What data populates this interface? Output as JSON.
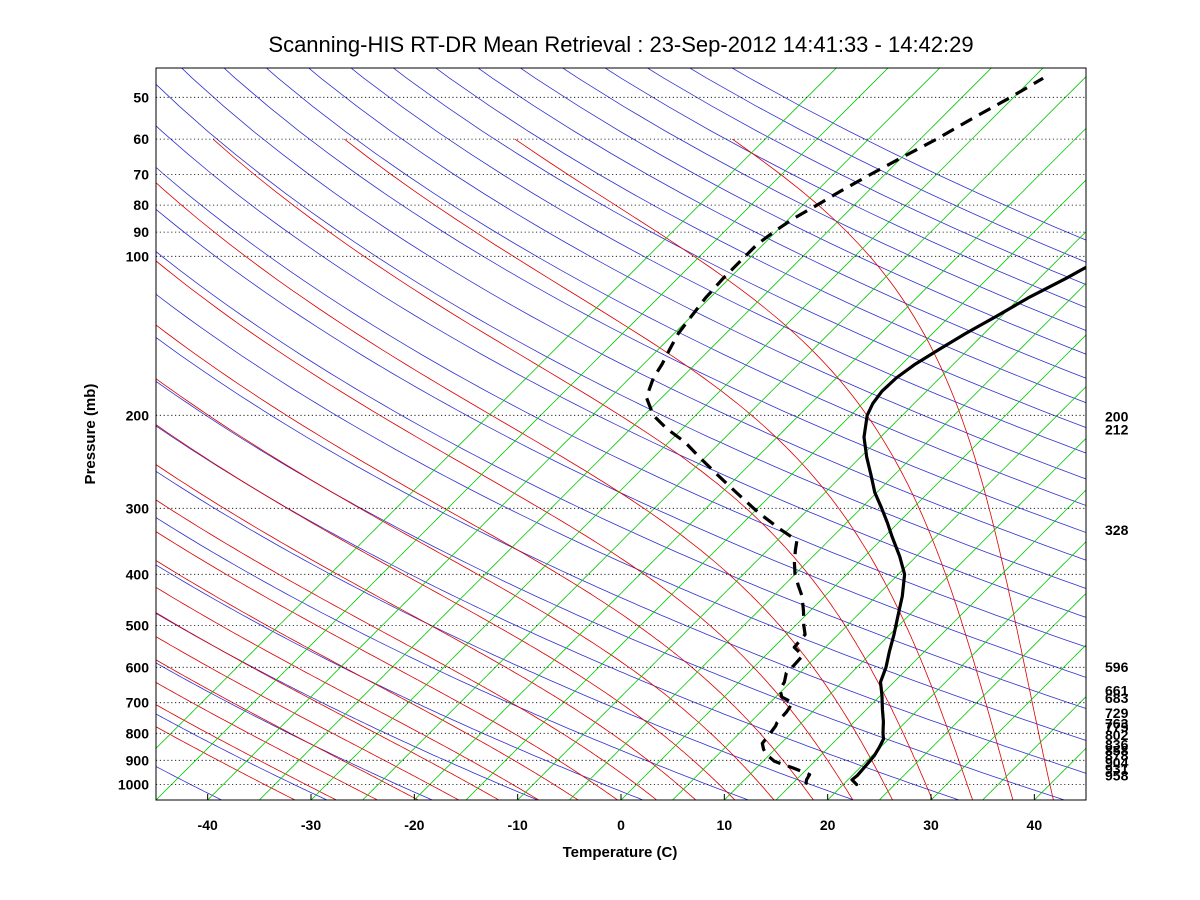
{
  "chart_data": {
    "type": "line",
    "subtype": "skew-t log-p sounding",
    "title": "Scanning-HIS RT-DR Mean Retrieval : 23-Sep-2012 14:41:33 - 14:42:29",
    "xlabel": "Temperature (C)",
    "ylabel": "Pressure (mb)",
    "xlim": [
      -45,
      45
    ],
    "ylim": [
      1070,
      44
    ],
    "x_ticks": [
      -40,
      -30,
      -20,
      -10,
      0,
      10,
      20,
      30,
      40
    ],
    "pressure_ticks": [
      50,
      60,
      70,
      80,
      90,
      100,
      200,
      300,
      400,
      500,
      600,
      700,
      800,
      900,
      1000
    ],
    "right_labels": [
      200,
      212,
      328,
      596,
      661,
      683,
      729,
      763,
      775,
      802,
      836,
      858,
      878,
      904,
      931,
      958
    ],
    "grid": true,
    "background_lines": {
      "dry_adiabats_color": "#3030d0",
      "moist_adiabats_color": "#dd0000",
      "mixing_ratio_color": "#00c800",
      "isobar_color": "#000000"
    },
    "series": [
      {
        "name": "Temperature",
        "style": "solid",
        "color": "#000000",
        "points": [
          [
            1000,
            21.3
          ],
          [
            980,
            20.4
          ],
          [
            960,
            20.5
          ],
          [
            930,
            20.4
          ],
          [
            900,
            20.3
          ],
          [
            880,
            20.2
          ],
          [
            850,
            19.9
          ],
          [
            820,
            19.5
          ],
          [
            800,
            18.9
          ],
          [
            760,
            17.8
          ],
          [
            720,
            16.5
          ],
          [
            680,
            15.2
          ],
          [
            640,
            13.7
          ],
          [
            600,
            12.8
          ],
          [
            560,
            11.6
          ],
          [
            520,
            10.4
          ],
          [
            480,
            9.0
          ],
          [
            440,
            7.5
          ],
          [
            400,
            5.6
          ],
          [
            370,
            3.4
          ],
          [
            340,
            0.8
          ],
          [
            320,
            -1.0
          ],
          [
            300,
            -3.0
          ],
          [
            280,
            -5.2
          ],
          [
            260,
            -7.2
          ],
          [
            240,
            -9.4
          ],
          [
            220,
            -11.6
          ],
          [
            200,
            -13.4
          ],
          [
            190,
            -14.0
          ],
          [
            180,
            -14.3
          ],
          [
            170,
            -14.2
          ],
          [
            160,
            -13.7
          ],
          [
            150,
            -12.8
          ],
          [
            140,
            -11.8
          ],
          [
            130,
            -10.5
          ],
          [
            120,
            -9.2
          ],
          [
            110,
            -7.4
          ],
          [
            100,
            -5.7
          ],
          [
            90,
            -3.5
          ],
          [
            80,
            -1.3
          ],
          [
            70,
            0.9
          ],
          [
            60,
            3.8
          ],
          [
            52,
            6.5
          ],
          [
            46,
            7.5
          ]
        ]
      },
      {
        "name": "Dewpoint",
        "style": "dashed",
        "color": "#000000",
        "points": [
          [
            1000,
            16.4
          ],
          [
            980,
            16.0
          ],
          [
            958,
            15.8
          ],
          [
            931,
            13.6
          ],
          [
            904,
            11.1
          ],
          [
            878,
            9.7
          ],
          [
            858,
            8.9
          ],
          [
            836,
            8.2
          ],
          [
            802,
            8.0
          ],
          [
            775,
            7.8
          ],
          [
            763,
            7.6
          ],
          [
            729,
            7.5
          ],
          [
            700,
            7.2
          ],
          [
            683,
            5.6
          ],
          [
            661,
            4.7
          ],
          [
            640,
            4.4
          ],
          [
            615,
            3.7
          ],
          [
            596,
            3.7
          ],
          [
            570,
            3.6
          ],
          [
            550,
            2.0
          ],
          [
            520,
            1.8
          ],
          [
            500,
            0.8
          ],
          [
            470,
            -0.6
          ],
          [
            440,
            -2.2
          ],
          [
            420,
            -3.6
          ],
          [
            400,
            -5.0
          ],
          [
            380,
            -6.2
          ],
          [
            360,
            -7.3
          ],
          [
            345,
            -8.1
          ],
          [
            328,
            -10.9
          ],
          [
            310,
            -13.8
          ],
          [
            300,
            -15.4
          ],
          [
            280,
            -18.6
          ],
          [
            260,
            -22.0
          ],
          [
            240,
            -25.6
          ],
          [
            225,
            -28.4
          ],
          [
            212,
            -31.5
          ],
          [
            200,
            -34.1
          ],
          [
            185,
            -36.5
          ],
          [
            170,
            -37.7
          ],
          [
            160,
            -38.2
          ],
          [
            150,
            -38.9
          ],
          [
            140,
            -39.6
          ],
          [
            130,
            -40.0
          ],
          [
            120,
            -40.4
          ],
          [
            110,
            -40.6
          ],
          [
            100,
            -40.6
          ],
          [
            95,
            -40.6
          ],
          [
            90,
            -40.2
          ],
          [
            85,
            -39.6
          ],
          [
            80,
            -38.6
          ],
          [
            75,
            -37.6
          ],
          [
            70,
            -36.4
          ],
          [
            65,
            -35.0
          ],
          [
            60,
            -33.4
          ],
          [
            55,
            -32.0
          ],
          [
            50,
            -30.3
          ],
          [
            46,
            -29.0
          ]
        ]
      }
    ]
  }
}
